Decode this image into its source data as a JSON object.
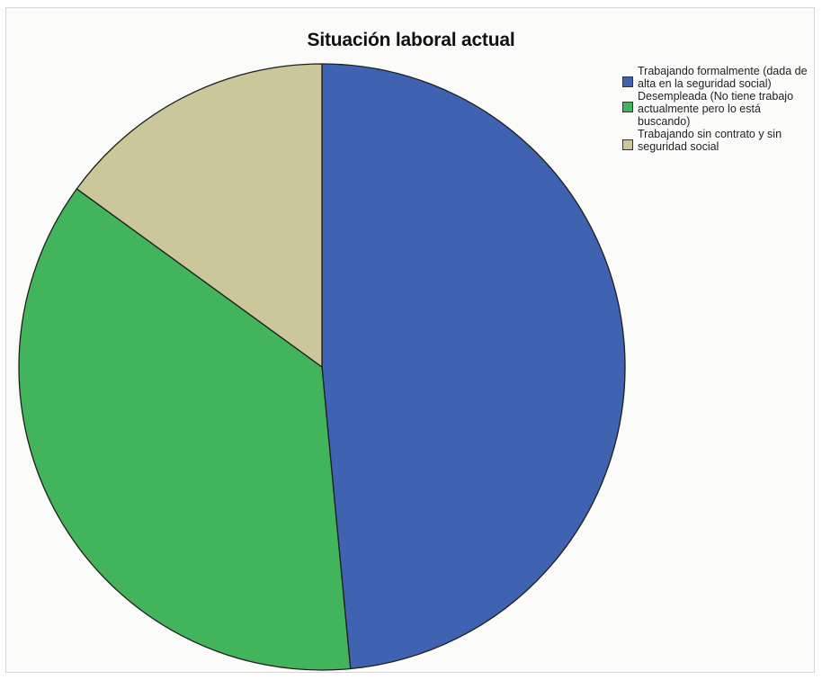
{
  "chart_data": {
    "type": "pie",
    "title": "Situación laboral actual",
    "slices": [
      {
        "label": "Trabajando formalmente (dada de alta en la seguridad social)",
        "value": 48.5,
        "color": "#3f63b0"
      },
      {
        "label": "Desempleada (No tiene trabajo actualmente pero lo está buscando)",
        "value": 36.5,
        "color": "#42b45c"
      },
      {
        "label": "Trabajando sin contrato y sin seguridad social",
        "value": 15.0,
        "color": "#cbc79a"
      }
    ],
    "start_angle_deg": 0,
    "direction": "clockwise",
    "legend_position": "top-right"
  }
}
